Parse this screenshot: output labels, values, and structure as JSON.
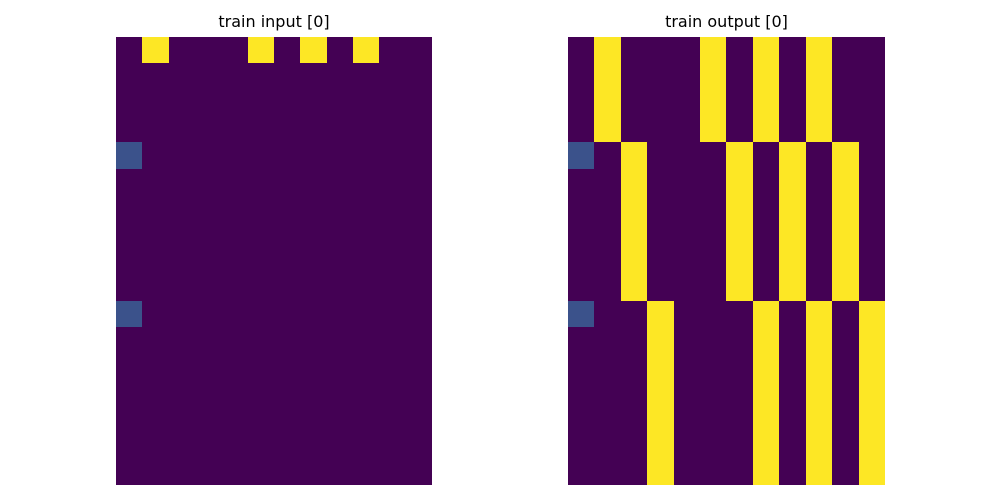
{
  "colors": {
    "0": "#440154",
    "1": "#3b528b",
    "4": "#fde725"
  },
  "panels": [
    {
      "title": "train input [0]",
      "rows": [
        [
          0,
          4,
          0,
          0,
          0,
          4,
          0,
          4,
          0,
          4,
          0,
          0
        ],
        [
          0,
          0,
          0,
          0,
          0,
          0,
          0,
          0,
          0,
          0,
          0,
          0
        ],
        [
          0,
          0,
          0,
          0,
          0,
          0,
          0,
          0,
          0,
          0,
          0,
          0
        ],
        [
          0,
          0,
          0,
          0,
          0,
          0,
          0,
          0,
          0,
          0,
          0,
          0
        ],
        [
          1,
          0,
          0,
          0,
          0,
          0,
          0,
          0,
          0,
          0,
          0,
          0
        ],
        [
          0,
          0,
          0,
          0,
          0,
          0,
          0,
          0,
          0,
          0,
          0,
          0
        ],
        [
          0,
          0,
          0,
          0,
          0,
          0,
          0,
          0,
          0,
          0,
          0,
          0
        ],
        [
          0,
          0,
          0,
          0,
          0,
          0,
          0,
          0,
          0,
          0,
          0,
          0
        ],
        [
          0,
          0,
          0,
          0,
          0,
          0,
          0,
          0,
          0,
          0,
          0,
          0
        ],
        [
          0,
          0,
          0,
          0,
          0,
          0,
          0,
          0,
          0,
          0,
          0,
          0
        ],
        [
          1,
          0,
          0,
          0,
          0,
          0,
          0,
          0,
          0,
          0,
          0,
          0
        ],
        [
          0,
          0,
          0,
          0,
          0,
          0,
          0,
          0,
          0,
          0,
          0,
          0
        ],
        [
          0,
          0,
          0,
          0,
          0,
          0,
          0,
          0,
          0,
          0,
          0,
          0
        ],
        [
          0,
          0,
          0,
          0,
          0,
          0,
          0,
          0,
          0,
          0,
          0,
          0
        ],
        [
          0,
          0,
          0,
          0,
          0,
          0,
          0,
          0,
          0,
          0,
          0,
          0
        ],
        [
          0,
          0,
          0,
          0,
          0,
          0,
          0,
          0,
          0,
          0,
          0,
          0
        ],
        [
          0,
          0,
          0,
          0,
          0,
          0,
          0,
          0,
          0,
          0,
          0,
          0
        ]
      ]
    },
    {
      "title": "train output [0]",
      "rows": [
        [
          0,
          4,
          0,
          0,
          0,
          4,
          0,
          4,
          0,
          4,
          0,
          0
        ],
        [
          0,
          4,
          0,
          0,
          0,
          4,
          0,
          4,
          0,
          4,
          0,
          0
        ],
        [
          0,
          4,
          0,
          0,
          0,
          4,
          0,
          4,
          0,
          4,
          0,
          0
        ],
        [
          0,
          4,
          0,
          0,
          0,
          4,
          0,
          4,
          0,
          4,
          0,
          0
        ],
        [
          1,
          0,
          4,
          0,
          0,
          0,
          4,
          0,
          4,
          0,
          4,
          0
        ],
        [
          0,
          0,
          4,
          0,
          0,
          0,
          4,
          0,
          4,
          0,
          4,
          0
        ],
        [
          0,
          0,
          4,
          0,
          0,
          0,
          4,
          0,
          4,
          0,
          4,
          0
        ],
        [
          0,
          0,
          4,
          0,
          0,
          0,
          4,
          0,
          4,
          0,
          4,
          0
        ],
        [
          0,
          0,
          4,
          0,
          0,
          0,
          4,
          0,
          4,
          0,
          4,
          0
        ],
        [
          0,
          0,
          4,
          0,
          0,
          0,
          4,
          0,
          4,
          0,
          4,
          0
        ],
        [
          1,
          0,
          0,
          4,
          0,
          0,
          0,
          4,
          0,
          4,
          0,
          4
        ],
        [
          0,
          0,
          0,
          4,
          0,
          0,
          0,
          4,
          0,
          4,
          0,
          4
        ],
        [
          0,
          0,
          0,
          4,
          0,
          0,
          0,
          4,
          0,
          4,
          0,
          4
        ],
        [
          0,
          0,
          0,
          4,
          0,
          0,
          0,
          4,
          0,
          4,
          0,
          4
        ],
        [
          0,
          0,
          0,
          4,
          0,
          0,
          0,
          4,
          0,
          4,
          0,
          4
        ],
        [
          0,
          0,
          0,
          4,
          0,
          0,
          0,
          4,
          0,
          4,
          0,
          4
        ],
        [
          0,
          0,
          0,
          4,
          0,
          0,
          0,
          4,
          0,
          4,
          0,
          4
        ]
      ]
    }
  ]
}
